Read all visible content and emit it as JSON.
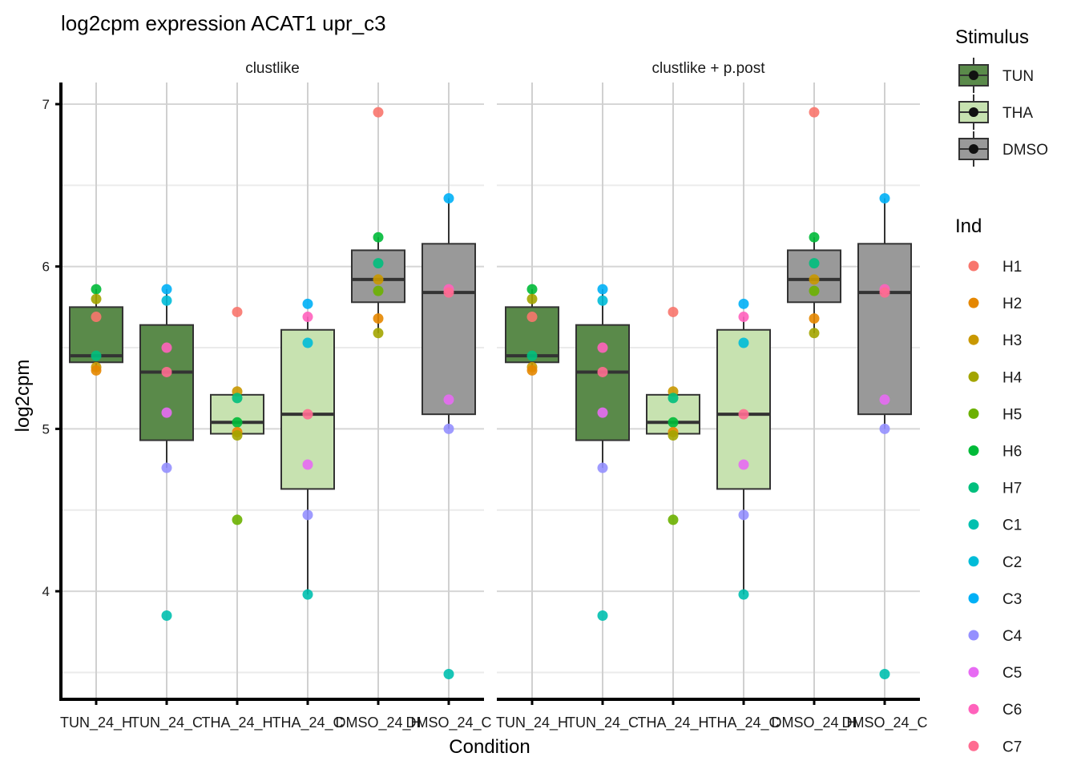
{
  "chart_data": {
    "type": "boxplot",
    "title": "log2cpm expression ACAT1 upr_c3",
    "xlabel": "Condition",
    "ylabel": "log2cpm",
    "ylim": [
      3.35,
      7.06
    ],
    "yticks": [
      4,
      5,
      6,
      7
    ],
    "grid": true,
    "categories": [
      "TUN_24_H",
      "TUN_24_C",
      "THA_24_H",
      "THA_24_C",
      "DMSO_24_H",
      "DMSO_24_C"
    ],
    "category_stimulus": [
      "TUN",
      "TUN",
      "THA",
      "THA",
      "DMSO",
      "DMSO"
    ],
    "facets": [
      "clustlike",
      "clustlike + p.post"
    ],
    "legend_position": "right",
    "stimulus_legend": {
      "title": "Stimulus",
      "items": [
        {
          "label": "TUN",
          "color": "#5A8A4A"
        },
        {
          "label": "THA",
          "color": "#C7E2B0"
        },
        {
          "label": "DMSO",
          "color": "#999999"
        }
      ]
    },
    "ind_legend": {
      "title": "Ind",
      "items": [
        {
          "label": "H1",
          "color": "#F8766D"
        },
        {
          "label": "H2",
          "color": "#E58700"
        },
        {
          "label": "H3",
          "color": "#C99800"
        },
        {
          "label": "H4",
          "color": "#A3A500"
        },
        {
          "label": "H5",
          "color": "#6BB100"
        },
        {
          "label": "H6",
          "color": "#00BA38"
        },
        {
          "label": "H7",
          "color": "#00BF7D"
        },
        {
          "label": "C1",
          "color": "#00C0AF"
        },
        {
          "label": "C2",
          "color": "#00BCD8"
        },
        {
          "label": "C3",
          "color": "#00B0F6"
        },
        {
          "label": "C4",
          "color": "#9590FF"
        },
        {
          "label": "C5",
          "color": "#E76BF3"
        },
        {
          "label": "C6",
          "color": "#FF62BC"
        },
        {
          "label": "C7",
          "color": "#FF6C91"
        }
      ]
    },
    "boxes": [
      {
        "category": "TUN_24_H",
        "lower": 5.36,
        "q1": 5.41,
        "median": 5.45,
        "q3": 5.75,
        "upper": 5.86
      },
      {
        "category": "TUN_24_C",
        "lower": 4.76,
        "q1": 4.93,
        "median": 5.35,
        "q3": 5.64,
        "upper": 5.86
      },
      {
        "category": "THA_24_H",
        "lower": 4.97,
        "q1": 4.97,
        "median": 5.04,
        "q3": 5.21,
        "upper": 5.21
      },
      {
        "category": "THA_24_C",
        "lower": 3.98,
        "q1": 4.63,
        "median": 5.09,
        "q3": 5.61,
        "upper": 5.69
      },
      {
        "category": "DMSO_24_H",
        "lower": 5.59,
        "q1": 5.78,
        "median": 5.92,
        "q3": 6.1,
        "upper": 6.18
      },
      {
        "category": "DMSO_24_C",
        "lower": 5.0,
        "q1": 5.09,
        "median": 5.84,
        "q3": 6.14,
        "upper": 6.42
      }
    ],
    "points": [
      {
        "category": "TUN_24_H",
        "ind": "H6",
        "value": 5.86
      },
      {
        "category": "TUN_24_H",
        "ind": "H4",
        "value": 5.8
      },
      {
        "category": "TUN_24_H",
        "ind": "H1",
        "value": 5.69
      },
      {
        "category": "TUN_24_H",
        "ind": "H7",
        "value": 5.45
      },
      {
        "category": "TUN_24_H",
        "ind": "H3",
        "value": 5.38
      },
      {
        "category": "TUN_24_H",
        "ind": "H2",
        "value": 5.36
      },
      {
        "category": "TUN_24_C",
        "ind": "C3",
        "value": 5.86
      },
      {
        "category": "TUN_24_C",
        "ind": "C2",
        "value": 5.79
      },
      {
        "category": "TUN_24_C",
        "ind": "C6",
        "value": 5.5
      },
      {
        "category": "TUN_24_C",
        "ind": "C7",
        "value": 5.35
      },
      {
        "category": "TUN_24_C",
        "ind": "C5",
        "value": 5.1
      },
      {
        "category": "TUN_24_C",
        "ind": "C4",
        "value": 4.76
      },
      {
        "category": "TUN_24_C",
        "ind": "C1",
        "value": 3.85
      },
      {
        "category": "THA_24_H",
        "ind": "H1",
        "value": 5.72
      },
      {
        "category": "THA_24_H",
        "ind": "H3",
        "value": 5.23
      },
      {
        "category": "THA_24_H",
        "ind": "H7",
        "value": 5.19
      },
      {
        "category": "THA_24_H",
        "ind": "H6",
        "value": 5.04
      },
      {
        "category": "THA_24_H",
        "ind": "H2",
        "value": 4.98
      },
      {
        "category": "THA_24_H",
        "ind": "H4",
        "value": 4.96
      },
      {
        "category": "THA_24_H",
        "ind": "H5",
        "value": 4.44
      },
      {
        "category": "THA_24_C",
        "ind": "C3",
        "value": 5.77
      },
      {
        "category": "THA_24_C",
        "ind": "C6",
        "value": 5.69
      },
      {
        "category": "THA_24_C",
        "ind": "C2",
        "value": 5.53
      },
      {
        "category": "THA_24_C",
        "ind": "C7",
        "value": 5.09
      },
      {
        "category": "THA_24_C",
        "ind": "C5",
        "value": 4.78
      },
      {
        "category": "THA_24_C",
        "ind": "C4",
        "value": 4.47
      },
      {
        "category": "THA_24_C",
        "ind": "C1",
        "value": 3.98
      },
      {
        "category": "DMSO_24_H",
        "ind": "H1",
        "value": 6.95
      },
      {
        "category": "DMSO_24_H",
        "ind": "H6",
        "value": 6.18
      },
      {
        "category": "DMSO_24_H",
        "ind": "H7",
        "value": 6.02
      },
      {
        "category": "DMSO_24_H",
        "ind": "H3",
        "value": 5.92
      },
      {
        "category": "DMSO_24_H",
        "ind": "H5",
        "value": 5.85
      },
      {
        "category": "DMSO_24_H",
        "ind": "H2",
        "value": 5.68
      },
      {
        "category": "DMSO_24_H",
        "ind": "H4",
        "value": 5.59
      },
      {
        "category": "DMSO_24_C",
        "ind": "C3",
        "value": 6.42
      },
      {
        "category": "DMSO_24_C",
        "ind": "C6",
        "value": 5.86
      },
      {
        "category": "DMSO_24_C",
        "ind": "C7",
        "value": 5.84
      },
      {
        "category": "DMSO_24_C",
        "ind": "C5",
        "value": 5.18
      },
      {
        "category": "DMSO_24_C",
        "ind": "C4",
        "value": 5.0
      },
      {
        "category": "DMSO_24_C",
        "ind": "C1",
        "value": 3.49
      }
    ]
  }
}
